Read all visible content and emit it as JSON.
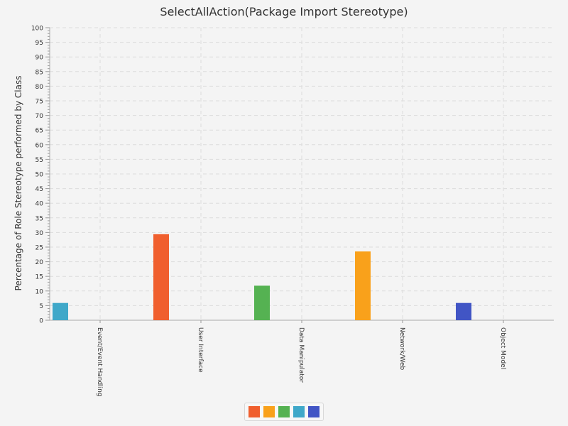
{
  "chart_data": {
    "type": "bar",
    "title": "SelectAllAction(Package Import Stereotype)",
    "xlabel": "",
    "ylabel": "Percentage of Role Stereotype performed by Class",
    "ylim": [
      0,
      100
    ],
    "yticks": [
      0,
      5,
      10,
      15,
      20,
      25,
      30,
      35,
      40,
      45,
      50,
      55,
      60,
      65,
      70,
      75,
      80,
      85,
      90,
      95,
      100
    ],
    "categories": [
      "Event/Event Handling",
      "User Interface",
      "Data Manipulator",
      "Network/Web",
      "Object Model"
    ],
    "values": [
      5.9,
      29.4,
      11.8,
      23.5,
      5.9
    ],
    "bar_colors": [
      "#3fa8c9",
      "#f05f2e",
      "#55b252",
      "#f9a11b",
      "#4155c5"
    ],
    "grid": true,
    "legend": {
      "position": "bottom",
      "swatches": [
        "#f05f2e",
        "#f9a11b",
        "#55b252",
        "#3fa8c9",
        "#4155c5"
      ]
    }
  }
}
